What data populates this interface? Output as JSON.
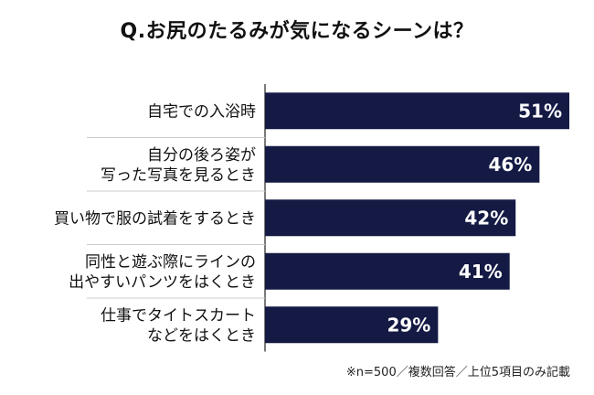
{
  "title": "Q.お尻のたるみが気になるシーンは？",
  "note": "※n=500／複数回答／上位5項目のみ記載",
  "colors": {
    "bar": "#141a44",
    "value_text": "#ffffff",
    "axis": "#222222",
    "divider": "#cccccc"
  },
  "chart_data": {
    "type": "bar",
    "orientation": "horizontal",
    "title": "Q.お尻のたるみが気になるシーンは？",
    "unit": "%",
    "xlim": [
      0,
      51
    ],
    "categories": [
      [
        "自宅での入浴時"
      ],
      [
        "自分の後ろ姿が",
        "写った写真を見るとき"
      ],
      [
        "買い物で服の試着をするとき"
      ],
      [
        "同性と遊ぶ際にラインの",
        "出やすいパンツをはくとき"
      ],
      [
        "仕事でタイトスカート",
        "などをはくとき"
      ]
    ],
    "values": [
      51,
      46,
      42,
      41,
      29
    ],
    "value_labels": [
      "51%",
      "46%",
      "42%",
      "41%",
      "29%"
    ]
  }
}
